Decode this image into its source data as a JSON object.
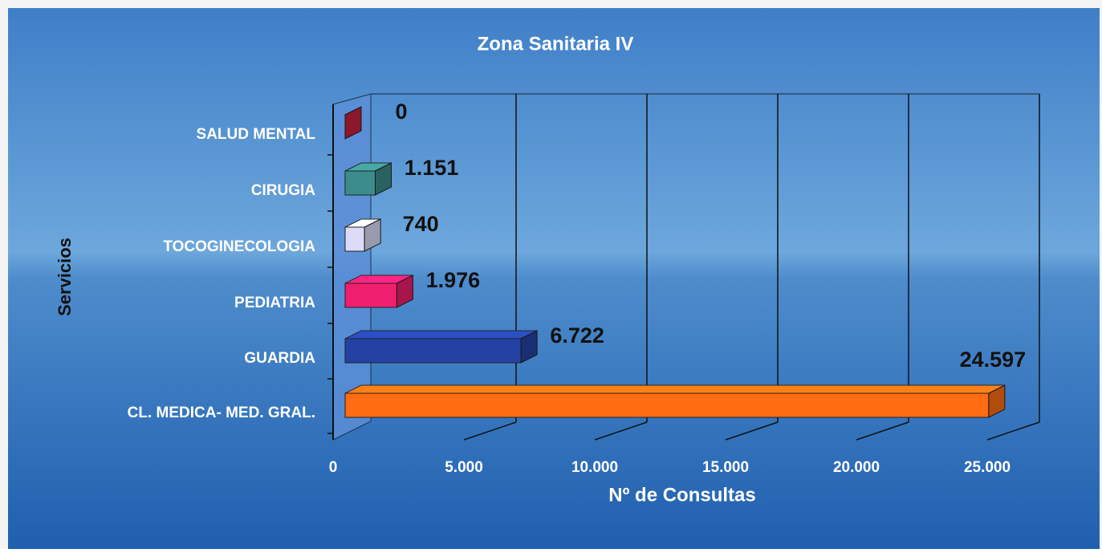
{
  "chart_data": {
    "type": "bar3d_horizontal",
    "title": "Zona Sanitaria IV",
    "x_label": "Nº de Consultas",
    "y_label": "Servicios",
    "categories": [
      "SALUD MENTAL",
      "CIRUGIA",
      "TOCOGINECOLOGIA",
      "PEDIATRIA",
      "GUARDIA",
      "CL. MEDICA- MED. GRAL."
    ],
    "values": [
      0,
      1151,
      740,
      1976,
      6722,
      24597
    ],
    "value_labels": [
      "0",
      "1.151",
      "740",
      "1.976",
      "6.722",
      "24.597"
    ],
    "colors": [
      "#c8203c",
      "#3c8c8c",
      "#dcdcf8",
      "#f01e6e",
      "#2442a4",
      "#ff6c12"
    ],
    "xlim": [
      0,
      25000
    ],
    "xticks": [
      0,
      {
        "value": 5000,
        "label": "5.000"
      },
      {
        "value": 10000,
        "label": "10.000"
      },
      {
        "value": 15000,
        "label": "15.000"
      },
      {
        "value": 20000,
        "label": "20.000"
      },
      {
        "value": 25000,
        "label": "25.000"
      }
    ],
    "grid": true
  }
}
